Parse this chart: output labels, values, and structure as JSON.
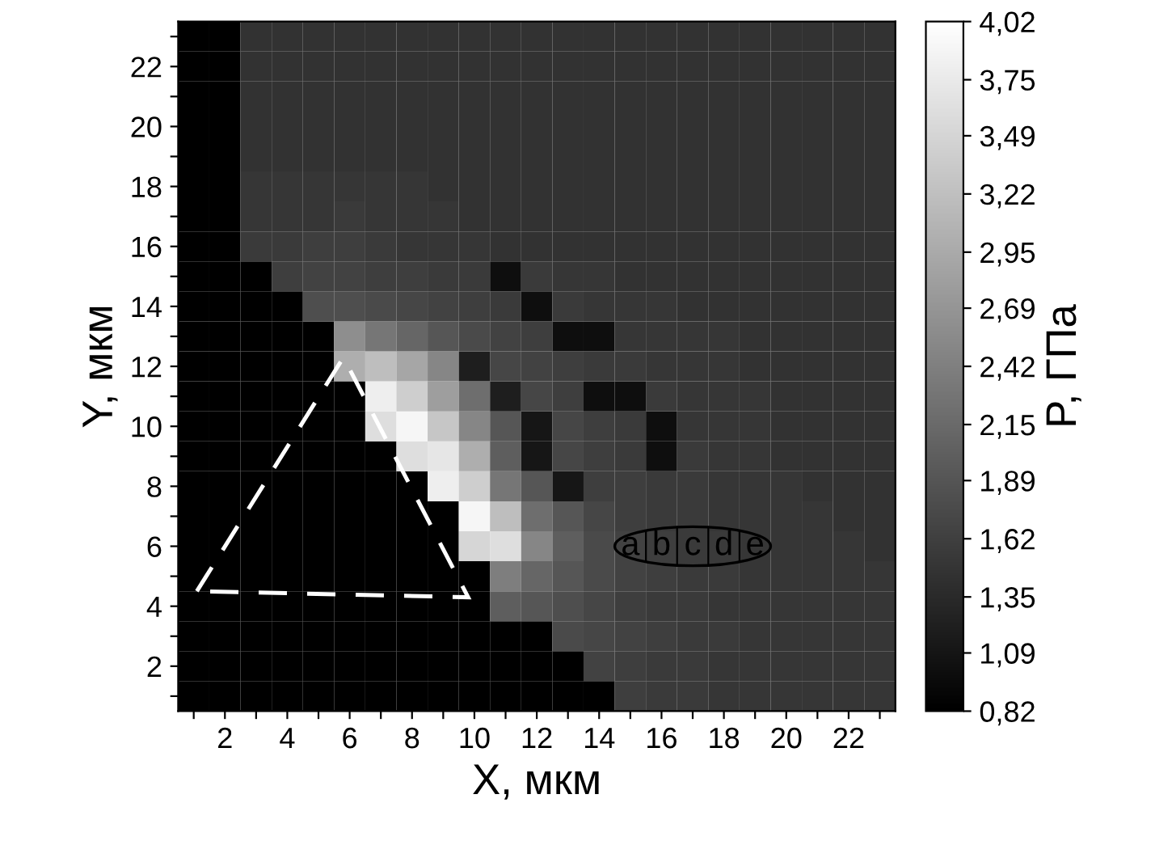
{
  "chart_data": {
    "type": "heatmap",
    "xlabel": "X, мкм",
    "ylabel": "Y, мкм",
    "clabel": "P, ГПа",
    "categories": [
      null,
      "2",
      null,
      "4",
      null,
      "6",
      null,
      "8",
      null,
      "10",
      null,
      "12",
      null,
      "14",
      null,
      "16",
      null,
      "18",
      null,
      "20",
      null,
      "22",
      null
    ],
    "y_categories": [
      null,
      "22",
      null,
      "20",
      null,
      "18",
      null,
      "16",
      null,
      "14",
      null,
      "12",
      null,
      "10",
      null,
      "8",
      null,
      "6",
      null,
      "4",
      null,
      "2",
      null
    ],
    "clim": [
      0.82,
      4.02
    ],
    "cticks": [
      {
        "value": 0.82,
        "label": "0,82"
      },
      {
        "value": 1.09,
        "label": "1,09"
      },
      {
        "value": 1.35,
        "label": "1,35"
      },
      {
        "value": 1.62,
        "label": "1,62"
      },
      {
        "value": 1.89,
        "label": "1,89"
      },
      {
        "value": 2.15,
        "label": "2,15"
      },
      {
        "value": 2.42,
        "label": "2,42"
      },
      {
        "value": 2.69,
        "label": "2,69"
      },
      {
        "value": 2.95,
        "label": "2,95"
      },
      {
        "value": 3.22,
        "label": "3,22"
      },
      {
        "value": 3.49,
        "label": "3,49"
      },
      {
        "value": 3.75,
        "label": "3,75"
      },
      {
        "value": 4.02,
        "label": "4,02"
      }
    ],
    "annotations": [
      "a",
      "b",
      "c",
      "d",
      "e"
    ],
    "cells": [
      [
        0.82,
        0.82,
        1.45,
        1.45,
        1.45,
        1.45,
        1.45,
        1.45,
        1.45,
        1.45,
        1.45,
        1.45,
        1.45,
        1.45,
        1.45,
        1.45,
        1.45,
        1.45,
        1.45,
        1.45,
        1.45,
        1.45,
        1.45
      ],
      [
        0.82,
        0.82,
        1.45,
        1.45,
        1.45,
        1.45,
        1.45,
        1.45,
        1.45,
        1.45,
        1.45,
        1.45,
        1.45,
        1.45,
        1.45,
        1.45,
        1.45,
        1.45,
        1.45,
        1.45,
        1.45,
        1.45,
        1.45
      ],
      [
        0.82,
        0.82,
        1.45,
        1.45,
        1.45,
        1.45,
        1.45,
        1.45,
        1.45,
        1.45,
        1.45,
        1.45,
        1.45,
        1.45,
        1.45,
        1.45,
        1.45,
        1.45,
        1.45,
        1.45,
        1.45,
        1.45,
        1.45
      ],
      [
        0.82,
        0.82,
        1.45,
        1.45,
        1.45,
        1.45,
        1.45,
        1.45,
        1.45,
        1.45,
        1.45,
        1.45,
        1.45,
        1.45,
        1.45,
        1.45,
        1.45,
        1.45,
        1.45,
        1.45,
        1.45,
        1.45,
        1.45
      ],
      [
        0.82,
        0.82,
        1.45,
        1.45,
        1.45,
        1.45,
        1.45,
        1.45,
        1.45,
        1.45,
        1.45,
        1.45,
        1.45,
        1.45,
        1.45,
        1.45,
        1.45,
        1.45,
        1.45,
        1.45,
        1.45,
        1.45,
        1.45
      ],
      [
        0.82,
        0.82,
        1.5,
        1.5,
        1.5,
        1.5,
        1.5,
        1.5,
        1.45,
        1.45,
        1.45,
        1.45,
        1.45,
        1.45,
        1.45,
        1.45,
        1.45,
        1.45,
        1.45,
        1.45,
        1.45,
        1.45,
        1.45
      ],
      [
        0.82,
        0.82,
        1.5,
        1.5,
        1.5,
        1.55,
        1.5,
        1.5,
        1.5,
        1.45,
        1.45,
        1.45,
        1.45,
        1.45,
        1.45,
        1.45,
        1.45,
        1.45,
        1.45,
        1.45,
        1.45,
        1.45,
        1.45
      ],
      [
        0.82,
        0.82,
        1.55,
        1.55,
        1.6,
        1.6,
        1.55,
        1.5,
        1.5,
        1.5,
        1.45,
        1.45,
        1.45,
        1.45,
        1.45,
        1.45,
        1.45,
        1.45,
        1.45,
        1.45,
        1.45,
        1.45,
        1.45
      ],
      [
        0.82,
        0.82,
        0.82,
        1.6,
        1.65,
        1.65,
        1.6,
        1.6,
        1.55,
        1.55,
        1.0,
        1.55,
        1.5,
        1.5,
        1.45,
        1.45,
        1.45,
        1.45,
        1.45,
        1.45,
        1.45,
        1.45,
        1.45
      ],
      [
        0.82,
        0.82,
        0.82,
        0.82,
        1.8,
        1.8,
        1.75,
        1.7,
        1.65,
        1.6,
        1.55,
        1.0,
        1.55,
        1.5,
        1.5,
        1.5,
        1.45,
        1.45,
        1.45,
        1.45,
        1.45,
        1.45,
        1.45
      ],
      [
        0.82,
        0.82,
        0.82,
        0.82,
        0.82,
        2.6,
        2.3,
        2.1,
        1.9,
        1.75,
        1.65,
        1.6,
        1.0,
        1.0,
        1.5,
        1.5,
        1.5,
        1.5,
        1.45,
        1.45,
        1.45,
        1.45,
        1.45
      ],
      [
        0.82,
        0.82,
        0.82,
        0.82,
        0.82,
        3.0,
        3.2,
        2.9,
        2.5,
        1.2,
        1.7,
        1.65,
        1.6,
        1.55,
        1.55,
        1.5,
        1.5,
        1.5,
        1.45,
        1.45,
        1.45,
        1.45,
        1.45
      ],
      [
        0.82,
        0.82,
        0.82,
        0.82,
        0.82,
        0.82,
        3.8,
        3.4,
        2.8,
        2.2,
        1.2,
        1.7,
        1.6,
        1.0,
        1.0,
        1.55,
        1.5,
        1.5,
        1.5,
        1.45,
        1.45,
        1.45,
        1.45
      ],
      [
        0.82,
        0.82,
        0.82,
        0.82,
        0.82,
        0.82,
        3.6,
        3.9,
        3.3,
        2.5,
        1.9,
        1.1,
        1.7,
        1.6,
        1.55,
        1.0,
        1.5,
        1.5,
        1.5,
        1.45,
        1.45,
        1.45,
        1.45
      ],
      [
        0.82,
        0.82,
        0.82,
        0.82,
        0.82,
        0.82,
        0.82,
        3.6,
        3.7,
        3.0,
        2.0,
        1.1,
        1.7,
        1.6,
        1.55,
        1.0,
        1.55,
        1.5,
        1.5,
        1.45,
        1.45,
        1.45,
        1.45
      ],
      [
        0.82,
        0.82,
        0.82,
        0.82,
        0.82,
        0.82,
        0.82,
        0.82,
        3.8,
        3.4,
        2.3,
        1.9,
        1.1,
        1.6,
        1.6,
        1.55,
        1.55,
        1.5,
        1.5,
        1.5,
        1.45,
        1.45,
        1.45
      ],
      [
        0.82,
        0.82,
        0.82,
        0.82,
        0.82,
        0.82,
        0.82,
        0.82,
        0.82,
        3.9,
        3.2,
        2.2,
        1.9,
        1.7,
        1.6,
        1.55,
        1.55,
        1.5,
        1.5,
        1.5,
        1.5,
        1.45,
        1.45
      ],
      [
        0.82,
        0.82,
        0.82,
        0.82,
        0.82,
        0.82,
        0.82,
        0.82,
        0.82,
        3.5,
        3.6,
        2.5,
        2.0,
        1.75,
        1.65,
        1.6,
        1.55,
        1.55,
        1.5,
        1.5,
        1.5,
        1.5,
        1.45
      ],
      [
        0.82,
        0.82,
        0.82,
        0.82,
        0.82,
        0.82,
        0.82,
        0.82,
        0.82,
        0.82,
        2.4,
        2.1,
        1.9,
        1.75,
        1.65,
        1.6,
        1.55,
        1.55,
        1.5,
        1.5,
        1.5,
        1.5,
        1.5
      ],
      [
        0.82,
        0.82,
        0.82,
        0.82,
        0.82,
        0.82,
        0.82,
        0.82,
        0.82,
        0.82,
        2.0,
        1.9,
        1.8,
        1.7,
        1.6,
        1.55,
        1.55,
        1.5,
        1.5,
        1.5,
        1.5,
        1.5,
        1.5
      ],
      [
        0.82,
        0.82,
        0.82,
        0.82,
        0.82,
        0.82,
        0.82,
        0.82,
        0.82,
        0.82,
        0.82,
        0.82,
        1.75,
        1.7,
        1.65,
        1.6,
        1.55,
        1.55,
        1.5,
        1.5,
        1.5,
        1.5,
        1.5
      ],
      [
        0.82,
        0.82,
        0.82,
        0.82,
        0.82,
        0.82,
        0.82,
        0.82,
        0.82,
        0.82,
        0.82,
        0.82,
        0.82,
        1.65,
        1.6,
        1.55,
        1.55,
        1.5,
        1.5,
        1.5,
        1.5,
        1.5,
        1.5
      ],
      [
        0.82,
        0.82,
        0.82,
        0.82,
        0.82,
        0.82,
        0.82,
        0.82,
        0.82,
        0.82,
        0.82,
        0.82,
        0.82,
        0.82,
        1.6,
        1.55,
        1.55,
        1.5,
        1.5,
        1.5,
        1.5,
        1.5,
        1.5
      ]
    ]
  }
}
